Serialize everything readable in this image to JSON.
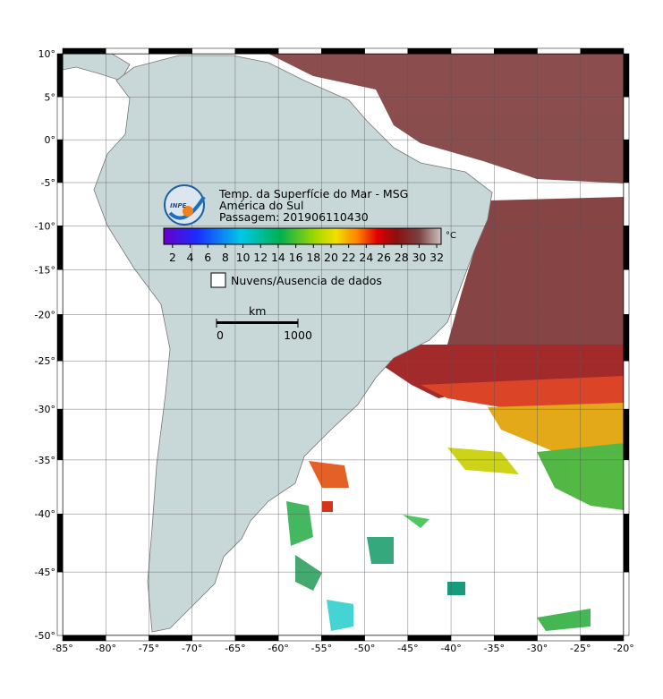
{
  "map": {
    "title_lines": [
      "Temp. da Superfície do Mar - MSG",
      "América do Sul",
      "Passagem: 201906110430"
    ],
    "logo_text": "INPE",
    "colorbar": {
      "unit": "°C",
      "clim": [
        1,
        32.5
      ],
      "ticks": [
        2,
        4,
        6,
        8,
        10,
        12,
        14,
        16,
        18,
        20,
        22,
        24,
        26,
        28,
        30,
        32
      ]
    },
    "legend": "Nuvens/Ausencia de dados",
    "scale_bar": {
      "unit": "km",
      "ticks": [
        0,
        1000
      ]
    },
    "lonlim": [
      -85,
      -20
    ],
    "latlim": [
      -50,
      10
    ],
    "lon_ticks": [
      {
        "value": -85,
        "label": "-85°"
      },
      {
        "value": -80,
        "label": "-80°"
      },
      {
        "value": -75,
        "label": "-75°"
      },
      {
        "value": -70,
        "label": "-70°"
      },
      {
        "value": -65,
        "label": "-65°"
      },
      {
        "value": -60,
        "label": "-60°"
      },
      {
        "value": -55,
        "label": "-55°"
      },
      {
        "value": -50,
        "label": "-50°"
      },
      {
        "value": -45,
        "label": "-45°"
      },
      {
        "value": -40,
        "label": "-40°"
      },
      {
        "value": -35,
        "label": "-35°"
      },
      {
        "value": -30,
        "label": "-30°"
      },
      {
        "value": -25,
        "label": "-25°"
      },
      {
        "value": -20,
        "label": "-20°"
      }
    ],
    "lat_ticks": [
      {
        "value": 10,
        "label": "10°"
      },
      {
        "value": 5,
        "label": "5°"
      },
      {
        "value": 0,
        "label": "0°"
      },
      {
        "value": -5,
        "label": "-5°"
      },
      {
        "value": -10,
        "label": "-10°"
      },
      {
        "value": -15,
        "label": "-15°"
      },
      {
        "value": -20,
        "label": "-20°"
      },
      {
        "value": -25,
        "label": "-25°"
      },
      {
        "value": -30,
        "label": "-30°"
      },
      {
        "value": -35,
        "label": "-35°"
      },
      {
        "value": -40,
        "label": "-40°"
      },
      {
        "value": -45,
        "label": "-45°"
      },
      {
        "value": -50,
        "label": "-50°"
      }
    ]
  }
}
